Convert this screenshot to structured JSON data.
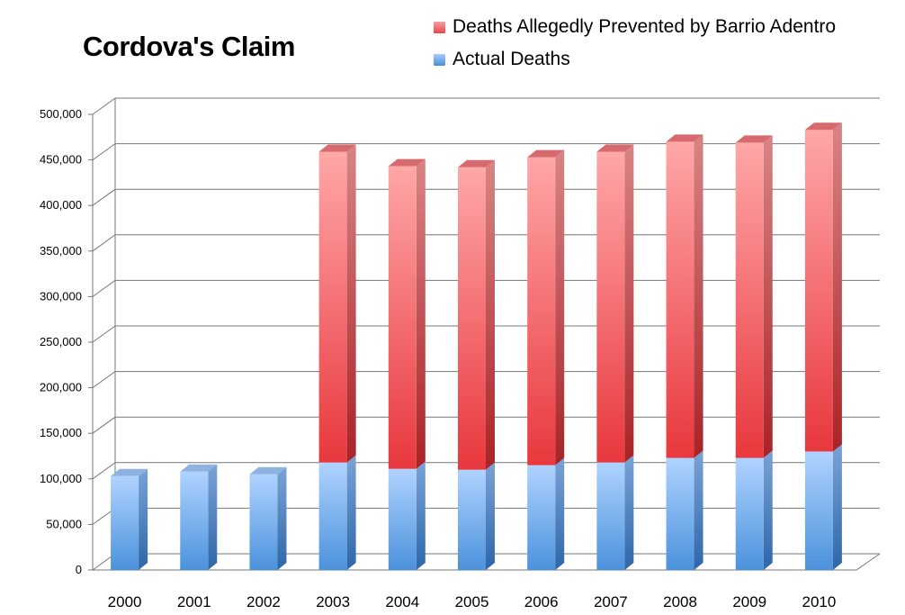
{
  "chart_data": {
    "type": "bar",
    "stacked": true,
    "three_d": true,
    "title": "Cordova's Claim",
    "categories": [
      "2000",
      "2001",
      "2002",
      "2003",
      "2004",
      "2005",
      "2006",
      "2007",
      "2008",
      "2009",
      "2010"
    ],
    "series": [
      {
        "name": "Actual Deaths",
        "color": "#5b9bd5",
        "values": [
          103000,
          108000,
          105000,
          118000,
          111000,
          110000,
          115000,
          118000,
          123000,
          123000,
          130000
        ]
      },
      {
        "name": "Deaths Allegedly Prevented by Barrio Adentro",
        "color": "#e8474b",
        "values": [
          0,
          0,
          0,
          341000,
          332000,
          332000,
          338000,
          341000,
          347000,
          346000,
          353000
        ]
      }
    ],
    "ylim": [
      0,
      500000
    ],
    "yticks": [
      "0",
      "50,000",
      "100,000",
      "150,000",
      "200,000",
      "250,000",
      "300,000",
      "350,000",
      "400,000",
      "450,000",
      "500,000"
    ],
    "grid": true,
    "legend_position": "top-right",
    "legend_order": [
      "Deaths Allegedly Prevented by Barrio Adentro",
      "Actual Deaths"
    ]
  }
}
